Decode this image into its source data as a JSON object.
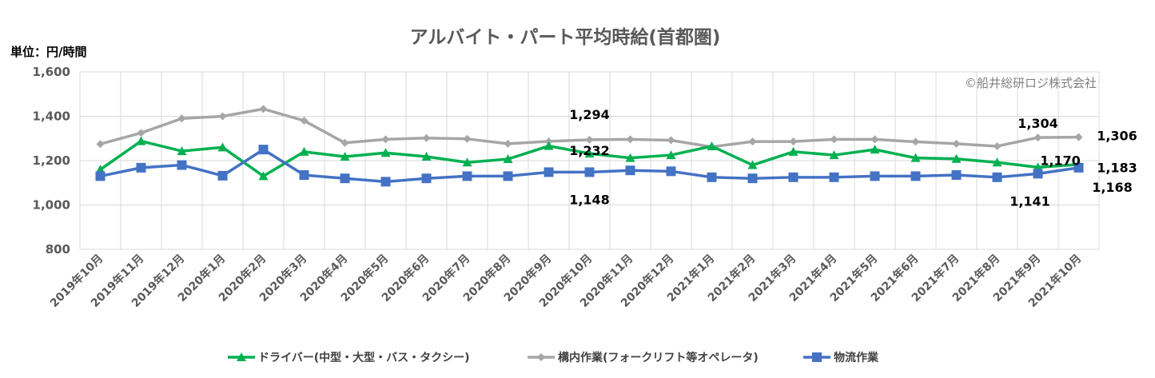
{
  "chart_data": {
    "type": "line",
    "title": "アルバイト・パート平均時給(首都圏)",
    "unit_label": "単位：円/時間",
    "copyright": "©船井総研ロジ株式会社",
    "ylim": [
      800,
      1600
    ],
    "yticks": [
      "800",
      "1,000",
      "1,200",
      "1,400",
      "1,600"
    ],
    "ytick_values": [
      800,
      1000,
      1200,
      1400,
      1600
    ],
    "categories": [
      "2019年10月",
      "2019年11月",
      "2019年12月",
      "2020年1月",
      "2020年2月",
      "2020年3月",
      "2020年4月",
      "2020年5月",
      "2020年6月",
      "2020年7月",
      "2020年8月",
      "2020年9月",
      "2020年10月",
      "2020年11月",
      "2020年12月",
      "2021年1月",
      "2021年2月",
      "2021年3月",
      "2021年4月",
      "2021年5月",
      "2021年6月",
      "2021年7月",
      "2021年8月",
      "2021年9月",
      "2021年10月"
    ],
    "grid": true,
    "legend_position": "bottom",
    "series": [
      {
        "name": "ドライバー(中型・大型・バス・タクシー)",
        "color": "#00b050",
        "marker": "triangle",
        "values": [
          1160,
          1288,
          1243,
          1260,
          1130,
          1240,
          1218,
          1235,
          1218,
          1192,
          1207,
          1266,
          1232,
          1212,
          1225,
          1265,
          1180,
          1240,
          1225,
          1250,
          1212,
          1208,
          1192,
          1170,
          1183
        ]
      },
      {
        "name": "構内作業(フォークリフト等オペレータ)",
        "color": "#a6a6a6",
        "marker": "diamond",
        "values": [
          1275,
          1325,
          1390,
          1400,
          1433,
          1380,
          1280,
          1296,
          1302,
          1298,
          1276,
          1287,
          1294,
          1296,
          1292,
          1262,
          1286,
          1286,
          1296,
          1296,
          1285,
          1276,
          1265,
          1304,
          1306
        ]
      },
      {
        "name": "物流作業",
        "color": "#4472c4",
        "marker": "square",
        "values": [
          1130,
          1168,
          1180,
          1132,
          1250,
          1135,
          1120,
          1105,
          1120,
          1130,
          1130,
          1148,
          1148,
          1156,
          1152,
          1125,
          1120,
          1125,
          1125,
          1130,
          1130,
          1135,
          1125,
          1141,
          1168
        ]
      }
    ],
    "annotations": [
      {
        "text": "1,294",
        "series": 1,
        "index": 12
      },
      {
        "text": "1,232",
        "series": 0,
        "index": 12
      },
      {
        "text": "1,148",
        "series": 2,
        "index": 12
      },
      {
        "text": "1,304",
        "series": 1,
        "index": 23
      },
      {
        "text": "1,170",
        "series": 0,
        "index": 23
      },
      {
        "text": "1,141",
        "series": 2,
        "index": 23
      },
      {
        "text": "1,306",
        "series": 1,
        "index": 24
      },
      {
        "text": "1,183",
        "series": 0,
        "index": 24
      },
      {
        "text": "1,168",
        "series": 2,
        "index": 24
      }
    ]
  }
}
